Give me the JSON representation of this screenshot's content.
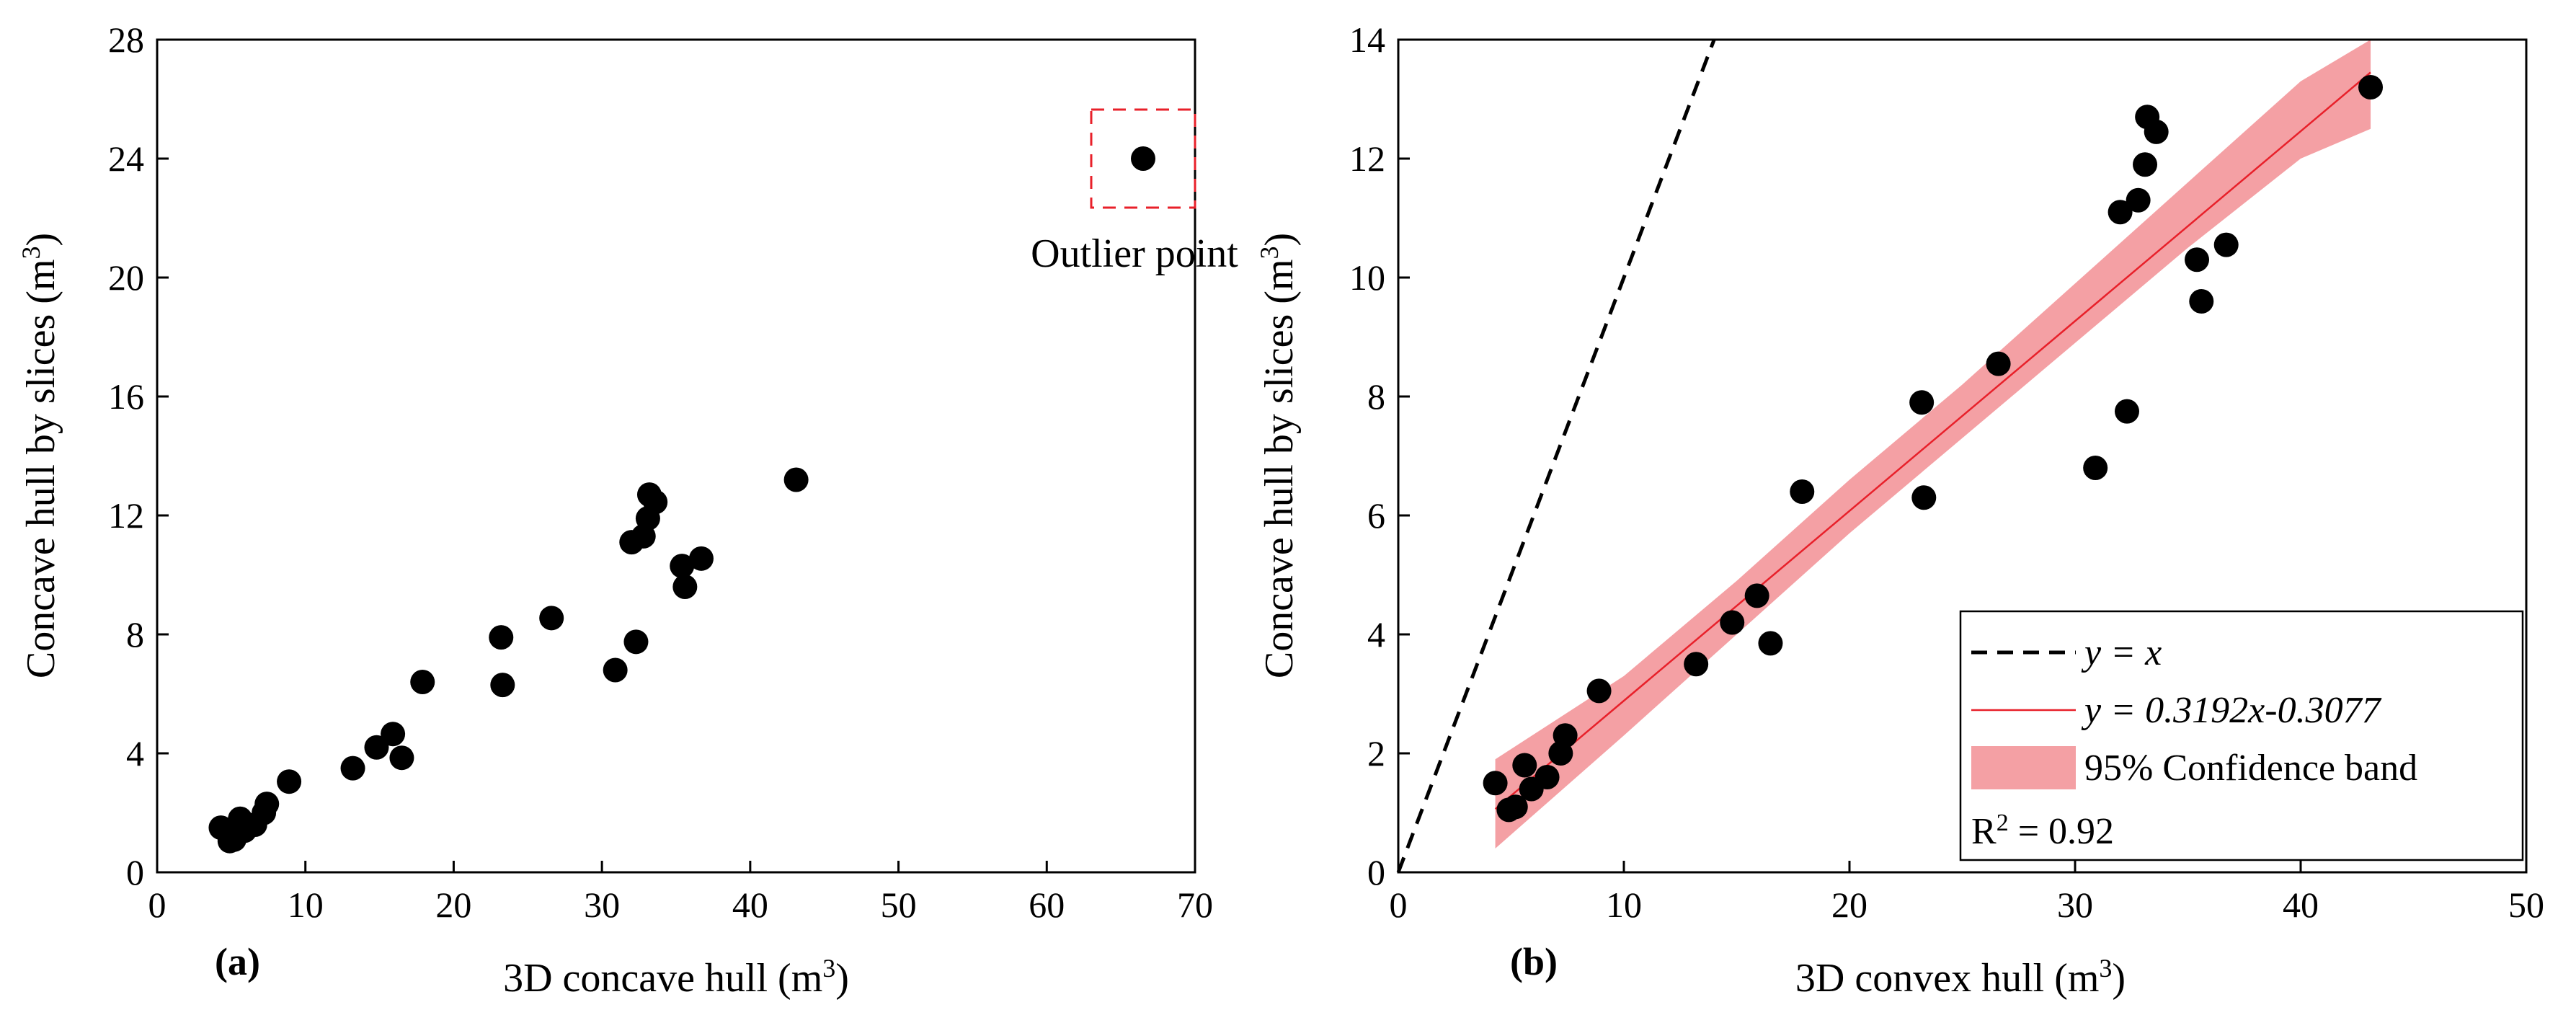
{
  "colors": {
    "points": "#000000",
    "fit_line": "#e8202a",
    "confidence_band": "#f4a0a4",
    "identity_line": "#000000",
    "outlier_box": "#e8202a"
  },
  "chart_data": [
    {
      "type": "scatter",
      "panel_label": "(a)",
      "xlabel": "3D concave hull (m",
      "xlabel_sup": "3",
      "xlabel_end": ")",
      "ylabel": "Concave hull by slices (m",
      "ylabel_sup": "3",
      "ylabel_end": ")",
      "xlim": [
        0,
        70
      ],
      "ylim": [
        0,
        28
      ],
      "xticks": [
        0,
        10,
        20,
        30,
        40,
        50,
        60,
        70
      ],
      "yticks": [
        0,
        4,
        8,
        12,
        16,
        20,
        24,
        28
      ],
      "points": [
        {
          "x": 4.3,
          "y": 1.5
        },
        {
          "x": 4.9,
          "y": 1.05
        },
        {
          "x": 5.2,
          "y": 1.1
        },
        {
          "x": 5.6,
          "y": 1.8
        },
        {
          "x": 5.9,
          "y": 1.4
        },
        {
          "x": 6.6,
          "y": 1.6
        },
        {
          "x": 7.2,
          "y": 2.0
        },
        {
          "x": 7.4,
          "y": 2.3
        },
        {
          "x": 8.9,
          "y": 3.05
        },
        {
          "x": 13.2,
          "y": 3.5
        },
        {
          "x": 14.8,
          "y": 4.2
        },
        {
          "x": 15.9,
          "y": 4.65
        },
        {
          "x": 16.5,
          "y": 3.85
        },
        {
          "x": 17.9,
          "y": 6.4
        },
        {
          "x": 23.2,
          "y": 7.9
        },
        {
          "x": 23.3,
          "y": 6.3
        },
        {
          "x": 26.6,
          "y": 8.55
        },
        {
          "x": 30.9,
          "y": 6.8
        },
        {
          "x": 32.0,
          "y": 11.1
        },
        {
          "x": 32.3,
          "y": 7.75
        },
        {
          "x": 32.8,
          "y": 11.3
        },
        {
          "x": 33.1,
          "y": 11.9
        },
        {
          "x": 33.2,
          "y": 12.7
        },
        {
          "x": 33.6,
          "y": 12.45
        },
        {
          "x": 35.4,
          "y": 10.3
        },
        {
          "x": 35.6,
          "y": 9.6
        },
        {
          "x": 36.7,
          "y": 10.55
        },
        {
          "x": 43.1,
          "y": 13.2
        }
      ],
      "outlier": {
        "x": 66.5,
        "y": 24.0,
        "label": "Outlier point"
      }
    },
    {
      "type": "scatter",
      "panel_label": "(b)",
      "xlabel": "3D convex hull (m",
      "xlabel_sup": "3",
      "xlabel_end": ")",
      "ylabel": "Concave hull by slices (m",
      "ylabel_sup": "3",
      "ylabel_end": ")",
      "xlim": [
        0,
        50
      ],
      "ylim": [
        0,
        14
      ],
      "xticks": [
        0,
        10,
        20,
        30,
        40,
        50
      ],
      "yticks": [
        0,
        2,
        4,
        6,
        8,
        10,
        12,
        14
      ],
      "points": [
        {
          "x": 4.3,
          "y": 1.5
        },
        {
          "x": 4.9,
          "y": 1.05
        },
        {
          "x": 5.2,
          "y": 1.1
        },
        {
          "x": 5.6,
          "y": 1.8
        },
        {
          "x": 5.9,
          "y": 1.4
        },
        {
          "x": 6.6,
          "y": 1.6
        },
        {
          "x": 7.2,
          "y": 2.0
        },
        {
          "x": 7.4,
          "y": 2.3
        },
        {
          "x": 8.9,
          "y": 3.05
        },
        {
          "x": 13.2,
          "y": 3.5
        },
        {
          "x": 14.8,
          "y": 4.2
        },
        {
          "x": 15.9,
          "y": 4.65
        },
        {
          "x": 16.5,
          "y": 3.85
        },
        {
          "x": 17.9,
          "y": 6.4
        },
        {
          "x": 23.2,
          "y": 7.9
        },
        {
          "x": 23.3,
          "y": 6.3
        },
        {
          "x": 26.6,
          "y": 8.55
        },
        {
          "x": 30.9,
          "y": 6.8
        },
        {
          "x": 32.0,
          "y": 11.1
        },
        {
          "x": 32.3,
          "y": 7.75
        },
        {
          "x": 32.8,
          "y": 11.3
        },
        {
          "x": 33.1,
          "y": 11.9
        },
        {
          "x": 33.2,
          "y": 12.7
        },
        {
          "x": 33.6,
          "y": 12.45
        },
        {
          "x": 35.4,
          "y": 10.3
        },
        {
          "x": 35.6,
          "y": 9.6
        },
        {
          "x": 36.7,
          "y": 10.55
        },
        {
          "x": 43.1,
          "y": 13.2
        }
      ],
      "identity_line": {
        "x": [
          0,
          14
        ],
        "y": [
          0,
          14
        ]
      },
      "fit": {
        "slope": 0.3192,
        "intercept": -0.3077,
        "x_range": [
          4.3,
          43.1
        ]
      },
      "confidence_band": {
        "x": [
          4.3,
          10,
          15,
          20,
          25,
          30,
          35,
          40,
          43.1
        ],
        "lower": [
          0.4,
          2.3,
          4.0,
          5.7,
          7.3,
          8.9,
          10.5,
          12.0,
          12.5
        ],
        "upper": [
          1.9,
          3.3,
          4.9,
          6.6,
          8.2,
          9.9,
          11.6,
          13.3,
          14.0
        ]
      },
      "legend": {
        "identity": "y = x",
        "fit": "y = 0.3192x-0.3077",
        "band": "95% Confidence band",
        "r2_prefix": "R",
        "r2_sup": "2",
        "r2_value": " = 0.92"
      }
    }
  ]
}
